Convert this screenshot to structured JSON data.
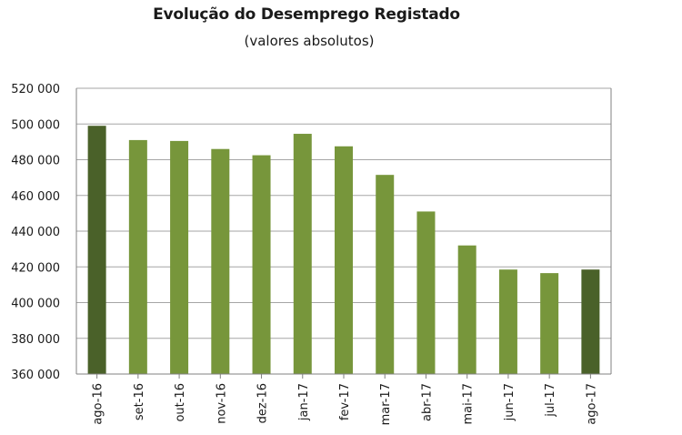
{
  "chart_data": {
    "type": "bar",
    "title": "Evolução do Desemprego Registado",
    "subtitle": "(valores absolutos)",
    "xlabel": "",
    "ylabel": "",
    "categories": [
      "ago-16",
      "set-16",
      "out-16",
      "nov-16",
      "dez-16",
      "jan-17",
      "fev-17",
      "mar-17",
      "abr-17",
      "mai-17",
      "jun-17",
      "jul-17",
      "ago-17"
    ],
    "values": [
      499000,
      491000,
      490500,
      486000,
      482500,
      494500,
      487500,
      471500,
      451000,
      432000,
      418500,
      416500,
      418500
    ],
    "ylim": [
      360000,
      520000
    ],
    "yticks": [
      360000,
      380000,
      400000,
      420000,
      440000,
      460000,
      480000,
      500000,
      520000
    ],
    "ytick_labels": [
      "360 000",
      "380 000",
      "400 000",
      "420 000",
      "440 000",
      "460 000",
      "480 000",
      "500 000",
      "520 000"
    ],
    "grid": true,
    "colors": {
      "bar": "#77963b",
      "bar_highlight": "#4a6129",
      "grid": "#a6a6a6",
      "axis": "#808080"
    },
    "highlighted_categories": [
      "ago-16",
      "ago-17"
    ]
  }
}
